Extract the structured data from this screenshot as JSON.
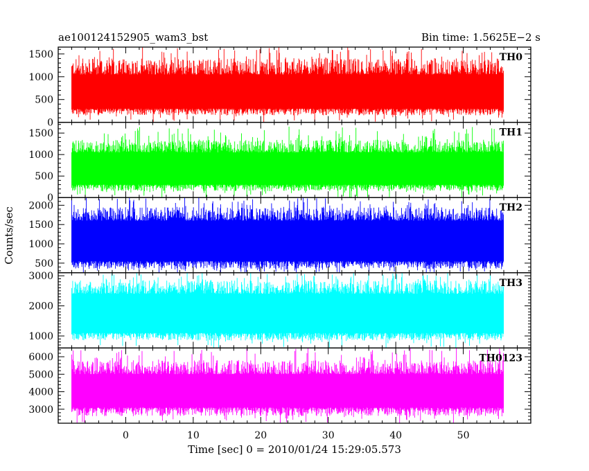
{
  "header": {
    "title": "ae100124152905_wam3_bst",
    "bin_time": "Bin time: 1.5625E−2 s"
  },
  "chart_data": {
    "type": "line",
    "title": "ae100124152905_wam3_bst",
    "subtitle": "Bin time: 1.5625E−2 s",
    "xlabel": "Time [sec] 0 = 2010/01/24 15:29:05.573",
    "ylabel": "Counts/sec",
    "xlim": [
      -10,
      60
    ],
    "x_ticks": [
      0,
      10,
      20,
      30,
      40,
      50
    ],
    "data_x_range": [
      -8,
      56
    ],
    "bin_time": 0.015625,
    "grid": false,
    "panels": [
      {
        "name": "TH0",
        "color": "#ff0000",
        "ylim": [
          0,
          1650
        ],
        "y_ticks": [
          0,
          500,
          1000,
          1500
        ],
        "envelope": {
          "low": 150,
          "base_low": 300,
          "base_high": 1050,
          "high": 1400,
          "peak": 1650
        }
      },
      {
        "name": "TH1",
        "color": "#00ff00",
        "ylim": [
          0,
          1750
        ],
        "y_ticks": [
          0,
          500,
          1000,
          1500
        ],
        "envelope": {
          "low": 150,
          "base_low": 300,
          "base_high": 1050,
          "high": 1350,
          "peak": 1650
        }
      },
      {
        "name": "TH2",
        "color": "#0000ff",
        "ylim": [
          250,
          2200
        ],
        "y_ticks": [
          500,
          1000,
          1500,
          2000
        ],
        "envelope": {
          "low": 350,
          "base_low": 550,
          "base_high": 1600,
          "high": 1950,
          "peak": 2200
        }
      },
      {
        "name": "TH3",
        "color": "#00ffff",
        "ylim": [
          600,
          3100
        ],
        "y_ticks": [
          1000,
          2000,
          3000
        ],
        "envelope": {
          "low": 850,
          "base_low": 1100,
          "base_high": 2400,
          "high": 2850,
          "peak": 3100
        }
      },
      {
        "name": "TH0123",
        "color": "#ff00ff",
        "ylim": [
          2200,
          6500
        ],
        "y_ticks": [
          3000,
          4000,
          5000,
          6000
        ],
        "envelope": {
          "low": 2600,
          "base_low": 3100,
          "base_high": 5000,
          "high": 5800,
          "peak": 6500
        }
      }
    ]
  }
}
